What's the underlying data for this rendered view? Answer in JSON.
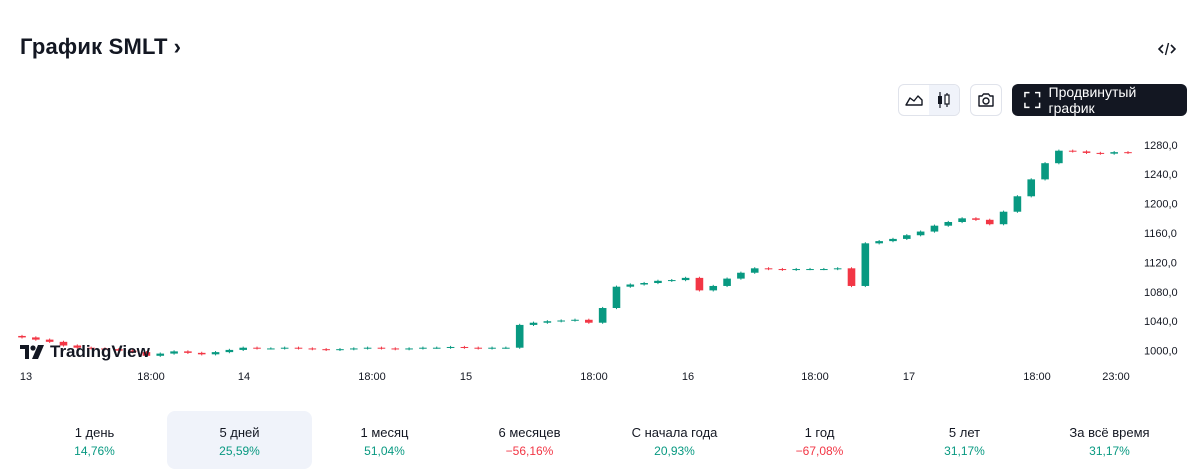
{
  "header": {
    "title": "График SMLT",
    "chevron": "›"
  },
  "toolbar": {
    "area_icon": "area-chart-icon",
    "candle_icon": "candlestick-icon",
    "snapshot_icon": "camera-icon",
    "advanced_label": "Продвинутый график",
    "advanced_icon": "fullscreen-icon"
  },
  "branding": {
    "logo_text": "TradingView"
  },
  "colors": {
    "up": "#089981",
    "down": "#f23645",
    "text": "#131722",
    "axis_text": "#131722"
  },
  "chart_data": {
    "type": "candlestick",
    "title": "SMLT",
    "x_tick_labels": [
      "13",
      "18:00",
      "14",
      "18:00",
      "15",
      "18:00",
      "16",
      "18:00",
      "17",
      "18:00",
      "23:00"
    ],
    "y_tick_labels": [
      "1280,0",
      "1240,0",
      "1200,0",
      "1160,0",
      "1120,0",
      "1080,0",
      "1040,0",
      "1000,0"
    ],
    "ylim": [
      990,
      1292
    ],
    "grid": false,
    "series": [
      {
        "name": "SMLT",
        "close": [
          1018,
          1015,
          1012,
          1007,
          1004,
          1003,
          1002,
          1000,
          998,
          993,
          996,
          999,
          997,
          995,
          998,
          1001,
          1004,
          1003,
          1003,
          1004,
          1003,
          1002,
          1001,
          1002,
          1003,
          1004,
          1003,
          1002,
          1003,
          1004,
          1004,
          1005,
          1004,
          1003,
          1004,
          1004,
          1035,
          1038,
          1040,
          1041,
          1042,
          1038,
          1058,
          1087,
          1090,
          1092,
          1095,
          1096,
          1099,
          1082,
          1088,
          1098,
          1106,
          1112,
          1111,
          1110,
          1111,
          1111,
          1111,
          1112,
          1088,
          1146,
          1149,
          1152,
          1157,
          1162,
          1170,
          1175,
          1180,
          1178,
          1172,
          1189,
          1210,
          1233,
          1255,
          1272,
          1271,
          1269,
          1268,
          1270,
          1269
        ]
      }
    ]
  },
  "periods": [
    {
      "label": "1 день",
      "value": "14,76%",
      "dir": "up"
    },
    {
      "label": "5 дней",
      "value": "25,59%",
      "dir": "up",
      "active": true
    },
    {
      "label": "1 месяц",
      "value": "51,04%",
      "dir": "up"
    },
    {
      "label": "6 месяцев",
      "value": "−56,16%",
      "dir": "down"
    },
    {
      "label": "С начала года",
      "value": "20,93%",
      "dir": "up"
    },
    {
      "label": "1 год",
      "value": "−67,08%",
      "dir": "down"
    },
    {
      "label": "5 лет",
      "value": "31,17%",
      "dir": "up"
    },
    {
      "label": "За всё время",
      "value": "31,17%",
      "dir": "up"
    }
  ]
}
